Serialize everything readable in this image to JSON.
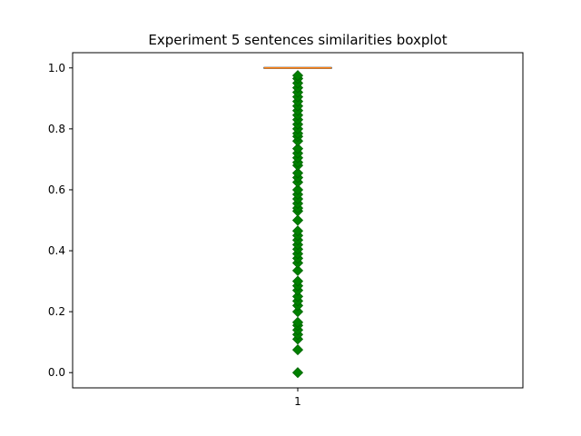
{
  "chart_data": {
    "type": "box",
    "title": "Experiment 5 sentences similarities boxplot",
    "xlabel": "",
    "ylabel": "",
    "categories": [
      "1"
    ],
    "ylim": [
      -0.05,
      1.05
    ],
    "yticks": [
      0.0,
      0.2,
      0.4,
      0.6,
      0.8,
      1.0
    ],
    "ytick_labels": [
      "0.0",
      "0.2",
      "0.4",
      "0.6",
      "0.8",
      "1.0"
    ],
    "grid": false,
    "legend": "none",
    "boxes": [
      {
        "category": "1",
        "q1": 1.0,
        "median": 1.0,
        "q3": 1.0,
        "whisker_low": 1.0,
        "whisker_high": 1.0,
        "outliers": [
          0.0,
          0.075,
          0.11,
          0.125,
          0.14,
          0.155,
          0.165,
          0.2,
          0.22,
          0.235,
          0.25,
          0.27,
          0.285,
          0.3,
          0.335,
          0.36,
          0.375,
          0.39,
          0.405,
          0.42,
          0.435,
          0.45,
          0.465,
          0.5,
          0.53,
          0.54,
          0.555,
          0.57,
          0.585,
          0.6,
          0.625,
          0.64,
          0.655,
          0.68,
          0.69,
          0.705,
          0.72,
          0.735,
          0.76,
          0.775,
          0.785,
          0.8,
          0.815,
          0.83,
          0.845,
          0.86,
          0.875,
          0.89,
          0.905,
          0.92,
          0.935,
          0.95,
          0.965,
          0.975
        ]
      }
    ],
    "colors": {
      "box": "#000000",
      "median": "#ff7f0e",
      "outlier_fill": "#008000",
      "outlier_edge": "#006400",
      "axes": "#000000"
    }
  }
}
